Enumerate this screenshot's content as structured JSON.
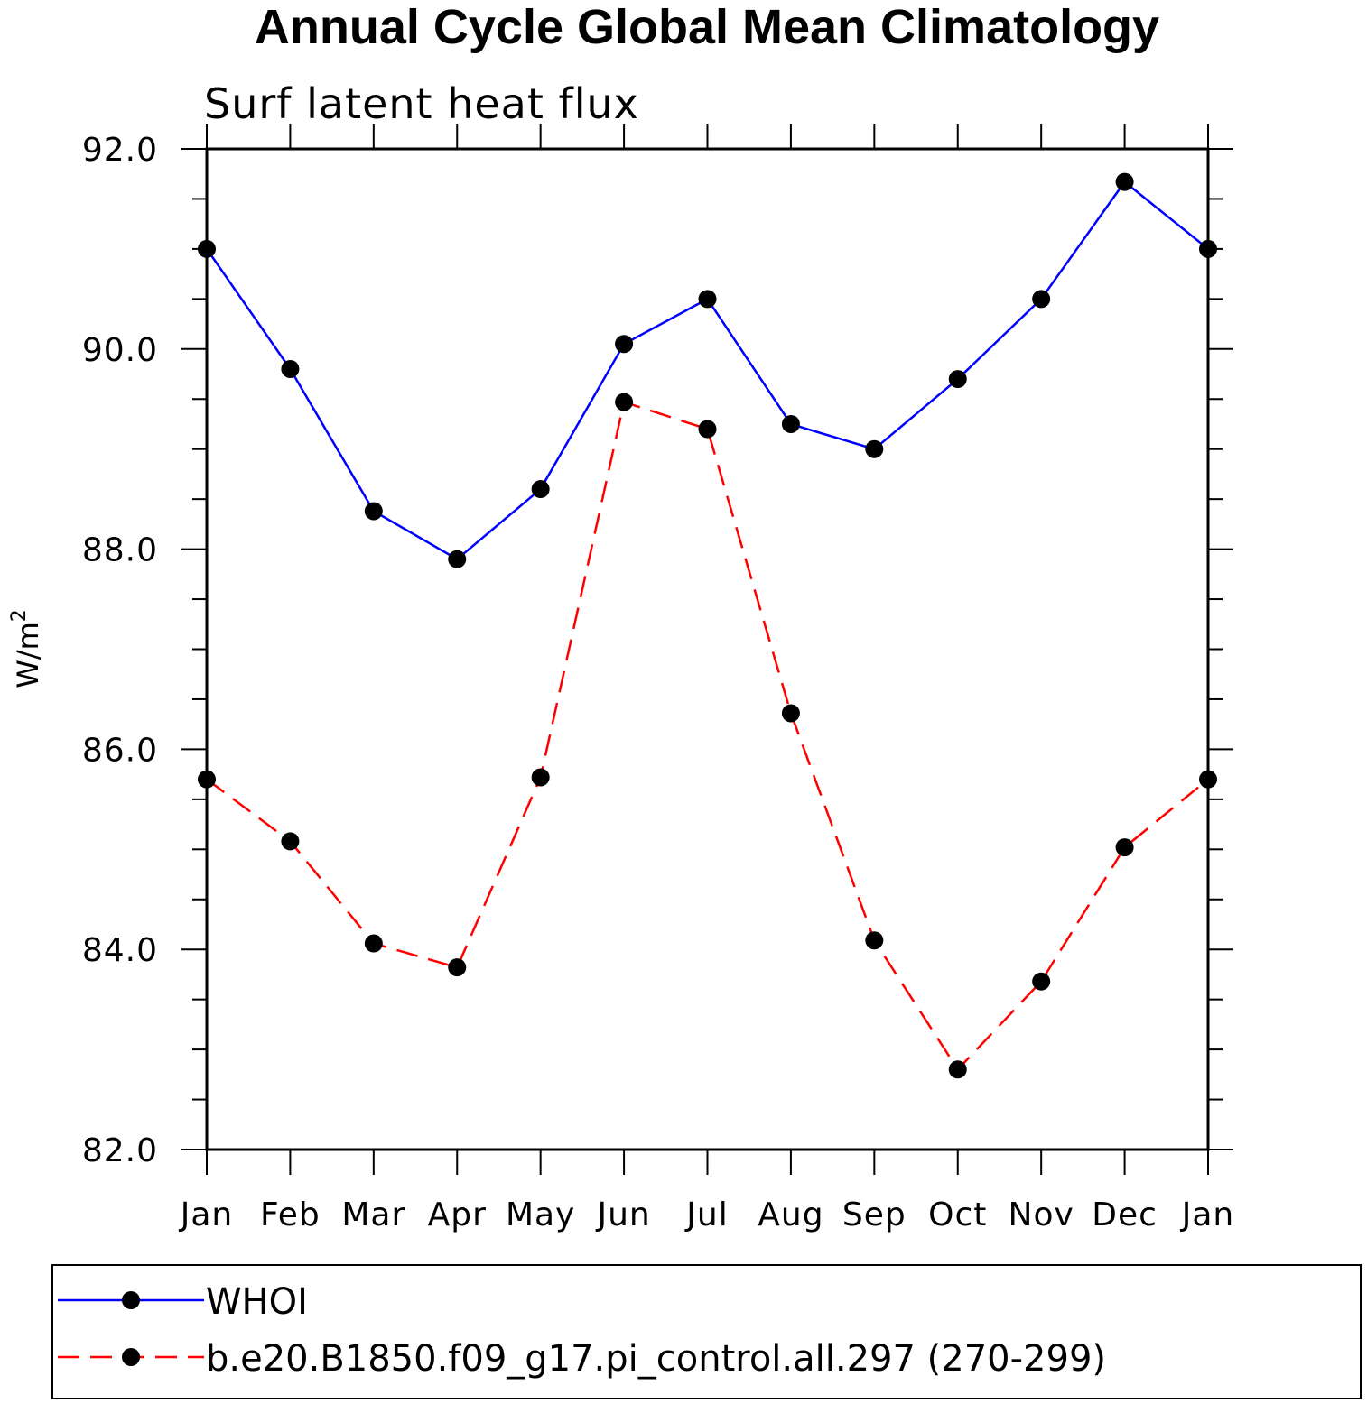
{
  "chart_data": {
    "type": "line",
    "title": "Annual Cycle Global Mean Climatology",
    "subtitle": "Surf latent heat flux",
    "ylabel": "W/m",
    "ylabel_superscript": "2",
    "ylim": [
      82.0,
      92.0
    ],
    "yticks": [
      "82.0",
      "84.0",
      "86.0",
      "88.0",
      "90.0",
      "92.0"
    ],
    "categories": [
      "Jan",
      "Feb",
      "Mar",
      "Apr",
      "May",
      "Jun",
      "Jul",
      "Aug",
      "Sep",
      "Oct",
      "Nov",
      "Dec",
      "Jan"
    ],
    "grid": false,
    "legend_position": "bottom",
    "series": [
      {
        "name": "WHOI",
        "color": "#0000ff",
        "line_style": "solid",
        "marker": "filled-circle",
        "values": [
          91.0,
          89.8,
          88.38,
          87.9,
          88.6,
          90.05,
          90.5,
          89.25,
          89.0,
          89.7,
          90.5,
          91.67,
          91.0
        ]
      },
      {
        "name": "b.e20.B1850.f09_g17.pi_control.all.297 (270-299)",
        "color": "#ff0000",
        "line_style": "dashed",
        "marker": "filled-circle",
        "values": [
          85.7,
          85.08,
          84.06,
          83.82,
          85.72,
          89.47,
          89.2,
          86.36,
          84.09,
          82.8,
          83.68,
          85.02,
          85.7
        ]
      }
    ]
  }
}
